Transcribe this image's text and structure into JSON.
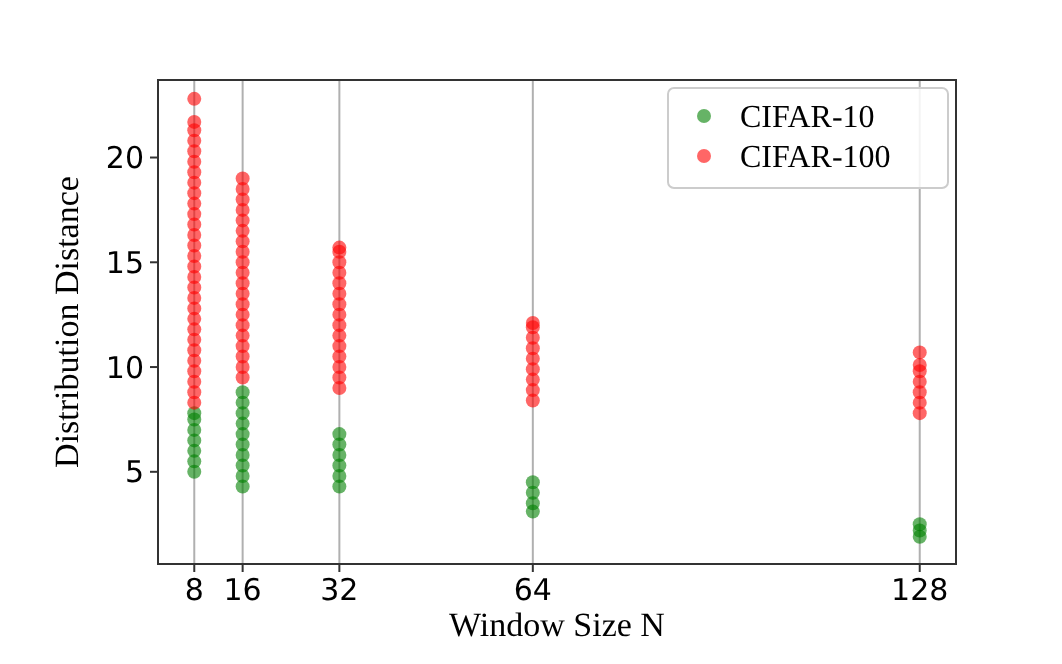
{
  "chart_data": {
    "type": "scatter",
    "xlabel": "Window Size N",
    "ylabel": "Distribution Distance",
    "xlim": [
      2,
      134
    ],
    "xticks": [
      8,
      16,
      32,
      64,
      128
    ],
    "ylim": [
      0.6,
      23.7
    ],
    "yticks": [
      5,
      10,
      15,
      20
    ],
    "grid": "x",
    "legend": "top right",
    "marker": "circle",
    "series": [
      {
        "name": "CIFAR-10",
        "color": "#008000",
        "x": [
          8,
          8,
          8,
          8,
          8,
          8,
          8,
          16,
          16,
          16,
          16,
          16,
          16,
          16,
          16,
          16,
          16,
          32,
          32,
          32,
          32,
          32,
          32,
          64,
          64,
          64,
          64,
          128,
          128,
          128
        ],
        "values": [
          5.0,
          5.5,
          6.0,
          6.5,
          7.0,
          7.5,
          7.8,
          4.3,
          4.8,
          5.3,
          5.8,
          6.3,
          6.8,
          7.3,
          7.8,
          8.3,
          8.8,
          4.3,
          4.8,
          5.3,
          5.8,
          6.3,
          6.8,
          3.1,
          3.5,
          4.0,
          4.5,
          1.9,
          2.2,
          2.5
        ]
      },
      {
        "name": "CIFAR-100",
        "color": "#ff0000",
        "x": [
          8,
          8,
          8,
          8,
          8,
          8,
          8,
          8,
          8,
          8,
          8,
          8,
          8,
          8,
          8,
          8,
          8,
          8,
          8,
          8,
          8,
          8,
          8,
          8,
          8,
          8,
          8,
          8,
          8,
          16,
          16,
          16,
          16,
          16,
          16,
          16,
          16,
          16,
          16,
          16,
          16,
          16,
          16,
          16,
          16,
          16,
          16,
          16,
          16,
          32,
          32,
          32,
          32,
          32,
          32,
          32,
          32,
          32,
          32,
          32,
          32,
          32,
          32,
          32,
          64,
          64,
          64,
          64,
          64,
          64,
          64,
          64,
          64,
          128,
          128,
          128,
          128,
          128,
          128,
          128
        ],
        "values": [
          8.3,
          8.8,
          9.3,
          9.8,
          10.3,
          10.8,
          11.3,
          11.8,
          12.3,
          12.8,
          13.3,
          13.8,
          14.3,
          14.8,
          15.3,
          15.8,
          16.3,
          16.8,
          17.3,
          17.8,
          18.3,
          18.8,
          19.3,
          19.8,
          20.3,
          20.8,
          21.3,
          21.7,
          22.8,
          9.5,
          10.0,
          10.5,
          11.0,
          11.5,
          12.0,
          12.5,
          13.0,
          13.5,
          14.0,
          14.5,
          15.0,
          15.5,
          16.0,
          16.5,
          17.0,
          17.5,
          18.0,
          18.5,
          19.0,
          9.0,
          9.5,
          10.0,
          10.5,
          11.0,
          11.5,
          12.0,
          12.5,
          13.0,
          13.5,
          14.0,
          14.5,
          15.0,
          15.5,
          15.7,
          8.4,
          8.9,
          9.4,
          9.9,
          10.4,
          10.9,
          11.4,
          11.9,
          12.1,
          7.8,
          8.3,
          8.8,
          9.3,
          9.8,
          10.1,
          10.7
        ]
      }
    ]
  }
}
